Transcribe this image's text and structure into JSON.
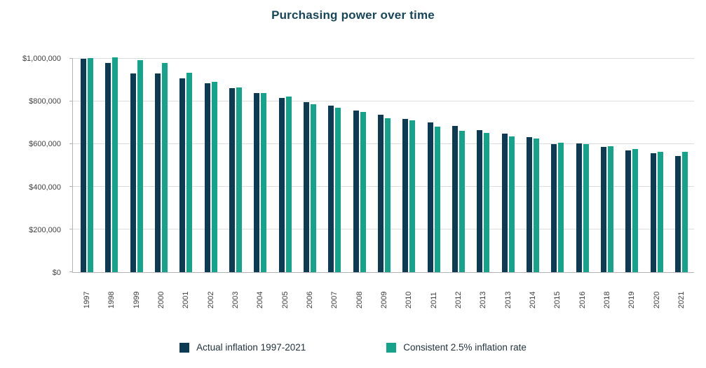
{
  "title": "Purchasing power over time",
  "colors": {
    "actual": "#0d3b54",
    "consistent": "#15a38b",
    "gridline": "#dcdcdc",
    "axis": "#b3b3b3",
    "title_text": "#17455a",
    "axis_text": "#3f3f3f"
  },
  "legend": {
    "items": [
      {
        "label": "Actual inflation 1997-2021",
        "color": "#0d3b54"
      },
      {
        "label": "Consistent 2.5% inflation rate",
        "color": "#15a38b"
      }
    ]
  },
  "chart_data": {
    "type": "bar",
    "title": "Purchasing power over time",
    "xlabel": "",
    "ylabel": "",
    "ylim": [
      0,
      1000000
    ],
    "ytick_interval": 200000,
    "ytick_labels": [
      "$0",
      "$200,000",
      "$400,000",
      "$600,000",
      "$800,000",
      "$1,000,000"
    ],
    "grid": true,
    "legend_position": "bottom",
    "categories": [
      "1997",
      "1998",
      "1999",
      "2000",
      "2001",
      "2002",
      "2003",
      "2004",
      "2005",
      "2006",
      "2007",
      "2008",
      "2009",
      "2010",
      "2011",
      "2012",
      "2013",
      "2013",
      "2014",
      "2015",
      "2016",
      "2018",
      "2019",
      "2020",
      "2021"
    ],
    "series": [
      {
        "name": "Actual inflation 1997-2021",
        "color": "#0d3b54",
        "values": [
          1000000,
          980000,
          932000,
          932000,
          908000,
          884000,
          861000,
          838000,
          818000,
          798000,
          779000,
          757000,
          737000,
          719000,
          702000,
          685000,
          665000,
          648000,
          632000,
          601000,
          602000,
          588000,
          571000,
          556000,
          544000
        ]
      },
      {
        "name": "Consistent 2.5% inflation rate",
        "color": "#15a38b",
        "values": [
          1003000,
          1005000,
          993000,
          980000,
          935000,
          893000,
          866000,
          841000,
          822000,
          788000,
          771000,
          751000,
          722000,
          712000,
          683000,
          662000,
          651000,
          637000,
          627000,
          607000,
          599000,
          590000,
          576000,
          564000,
          565000
        ]
      }
    ]
  }
}
